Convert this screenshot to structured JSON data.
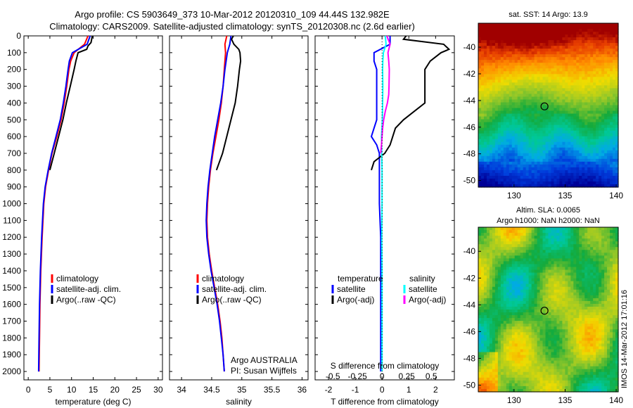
{
  "header": {
    "title_line1": "Argo profile: CS 5903649_373 10-Mar-2012 20120310_109 44.44S 132.982E",
    "title_line2": "Climatology: CARS2009. Satellite-adjusted climatology: synTS_20120308.nc (2.6d earlier)"
  },
  "colors": {
    "climatology": "#ff0000",
    "satellite": "#0000ff",
    "argo": "#000000",
    "satellite_salinity": "#00ffff",
    "argo_salinity_diff": "#ff00ff"
  },
  "chart_data": [
    {
      "type": "line",
      "panel": "temperature",
      "xlabel": "temperature (deg C)",
      "ylabel": "",
      "xlim": [
        -1,
        31
      ],
      "ylim": [
        2050,
        0
      ],
      "xticks": [
        0,
        5,
        10,
        15,
        20,
        25,
        30
      ],
      "yticks": [
        0,
        100,
        200,
        300,
        400,
        500,
        600,
        700,
        800,
        900,
        1000,
        1100,
        1200,
        1300,
        1400,
        1500,
        1600,
        1700,
        1800,
        1900,
        2000
      ],
      "legend": [
        "climatology",
        "satellite-adj. clim.",
        "Argo(..raw -QC)"
      ],
      "legend_placement": "lower-right",
      "series": [
        {
          "name": "climatology",
          "color": "#ff0000",
          "depth": [
            0,
            50,
            100,
            150,
            200,
            300,
            400,
            500,
            600,
            700,
            800,
            900,
            1000,
            1200,
            1400,
            1600,
            1800,
            2000
          ],
          "values": [
            13.8,
            13.0,
            10.6,
            9.8,
            9.4,
            8.9,
            8.3,
            7.6,
            6.6,
            5.5,
            4.7,
            4.0,
            3.6,
            3.2,
            2.9,
            2.7,
            2.6,
            2.5
          ]
        },
        {
          "name": "satellite-adj. clim.",
          "color": "#0000ff",
          "depth": [
            0,
            50,
            100,
            150,
            200,
            300,
            400,
            500,
            600,
            700,
            800,
            900,
            1000,
            1200,
            1400,
            1600,
            1800,
            2000
          ],
          "values": [
            14.3,
            13.6,
            10.2,
            9.5,
            9.2,
            8.7,
            8.1,
            7.4,
            6.4,
            5.4,
            4.6,
            3.9,
            3.5,
            3.1,
            2.8,
            2.6,
            2.5,
            2.4
          ]
        },
        {
          "name": "Argo(..raw -QC)",
          "color": "#000000",
          "depth": [
            0,
            40,
            60,
            80,
            100,
            150,
            200,
            300,
            400,
            500,
            600,
            700,
            800
          ],
          "values": [
            14.8,
            14.5,
            13.8,
            13.5,
            11.5,
            11.0,
            10.6,
            9.7,
            8.8,
            8.0,
            7.0,
            6.0,
            5.0
          ]
        }
      ]
    },
    {
      "type": "line",
      "panel": "salinity",
      "xlabel": "salinity",
      "ylabel": "",
      "xlim": [
        33.8,
        36.1
      ],
      "ylim": [
        2050,
        0
      ],
      "xticks": [
        34,
        34.5,
        35,
        35.5,
        36
      ],
      "legend": [
        "climatology",
        "satellite-adj. clim.",
        "Argo(..raw -QC)"
      ],
      "legend_placement": "lower-right",
      "annotations": [
        "Argo AUSTRALIA",
        "PI: Susan Wijffels"
      ],
      "series": [
        {
          "name": "climatology",
          "color": "#ff0000",
          "depth": [
            0,
            50,
            100,
            150,
            200,
            300,
            400,
            500,
            600,
            700,
            800,
            900,
            1000,
            1100,
            1200,
            1300,
            1400,
            1500,
            1600,
            1700,
            1800,
            1900,
            2000
          ],
          "values": [
            34.75,
            34.72,
            34.73,
            34.72,
            34.71,
            34.69,
            34.66,
            34.62,
            34.57,
            34.52,
            34.48,
            34.45,
            34.43,
            34.42,
            34.43,
            34.46,
            34.5,
            34.55,
            34.6,
            34.64,
            34.67,
            34.69,
            34.71
          ]
        },
        {
          "name": "satellite-adj. clim.",
          "color": "#0000ff",
          "depth": [
            0,
            50,
            100,
            150,
            200,
            300,
            400,
            500,
            600,
            700,
            800,
            900,
            1000,
            1100,
            1200,
            1300,
            1400,
            1500,
            1600,
            1700,
            1800,
            1900,
            2000
          ],
          "values": [
            34.82,
            34.8,
            34.76,
            34.74,
            34.72,
            34.69,
            34.65,
            34.6,
            34.55,
            34.51,
            34.47,
            34.44,
            34.42,
            34.41,
            34.42,
            34.45,
            34.49,
            34.54,
            34.59,
            34.63,
            34.66,
            34.69,
            34.71
          ]
        },
        {
          "name": "Argo(..raw -QC)",
          "color": "#000000",
          "depth": [
            0,
            20,
            50,
            80,
            100,
            150,
            200,
            300,
            400,
            500,
            600,
            700,
            800
          ],
          "values": [
            34.86,
            34.83,
            34.87,
            34.95,
            34.97,
            34.98,
            34.96,
            34.93,
            34.89,
            34.82,
            34.75,
            34.68,
            34.58
          ]
        }
      ]
    },
    {
      "type": "line",
      "panel": "difference",
      "xlabel": "T difference from climatology",
      "xlabel_top": "S difference from climatology",
      "xlim": [
        -2.5,
        2.7
      ],
      "ylim": [
        2050,
        0
      ],
      "xticks": [
        -2,
        -1,
        0,
        1,
        2
      ],
      "xtick_labels": [
        "-2",
        "-1",
        "0",
        "1",
        "2"
      ],
      "sticks": [
        -0.5,
        -0.25,
        0,
        0.25,
        0.5
      ],
      "stick_labels": [
        "-0.5",
        "-0.25",
        "0",
        "0.25",
        "0.5"
      ],
      "legend_groups": [
        {
          "header": "temperature",
          "items": [
            "satellite",
            "Argo(-adj)"
          ]
        },
        {
          "header": "salinity",
          "items": [
            "satellite",
            "Argo(-adj)"
          ]
        }
      ],
      "series": [
        {
          "name": "T satellite",
          "color": "#0000ff",
          "depth": [
            0,
            50,
            100,
            150,
            200,
            300,
            400,
            500,
            550,
            600,
            650,
            700,
            800,
            900,
            1000,
            1200,
            1400,
            1600,
            1800,
            2000
          ],
          "values": [
            0.3,
            0.3,
            -0.3,
            -0.3,
            -0.2,
            -0.2,
            -0.2,
            -0.2,
            -0.3,
            -0.4,
            -0.2,
            -0.1,
            -0.1,
            -0.1,
            -0.1,
            -0.05,
            -0.05,
            -0.05,
            -0.05,
            -0.05
          ]
        },
        {
          "name": "T Argo(-adj)",
          "color": "#000000",
          "depth": [
            0,
            20,
            50,
            80,
            100,
            150,
            200,
            300,
            400,
            450,
            500,
            550,
            600,
            650,
            700,
            750,
            800
          ],
          "values": [
            0.9,
            0.8,
            2.3,
            2.5,
            2.2,
            1.8,
            1.6,
            1.6,
            1.6,
            1.2,
            0.8,
            0.5,
            0.4,
            0.3,
            0.1,
            -0.3,
            -0.4
          ]
        },
        {
          "name": "S satellite",
          "color": "#00ffff",
          "depth": [
            0,
            50,
            100,
            150,
            200,
            300,
            400,
            500,
            600,
            700,
            800,
            900,
            1000,
            1200,
            1400,
            1600,
            1800,
            2000
          ],
          "values": [
            0.12,
            0.15,
            0.05,
            0.03,
            0.02,
            0.03,
            0.02,
            0.01,
            -0.02,
            -0.01,
            0.0,
            0.0,
            0.0,
            -0.01,
            0.0,
            0.0,
            0.0,
            0.0
          ]
        },
        {
          "name": "S Argo(-adj)",
          "color": "#ff00ff",
          "depth": [
            0,
            50,
            100,
            150,
            200,
            300,
            350,
            400,
            450,
            500,
            550,
            600,
            650,
            700
          ],
          "values": [
            0.18,
            0.3,
            0.22,
            0.25,
            0.27,
            0.26,
            0.25,
            0.2,
            0.12,
            0.06,
            0.02,
            0.0,
            -0.02,
            -0.05
          ]
        }
      ]
    },
    {
      "type": "heatmap",
      "panel": "sst-map",
      "title": "sat. SST: 14 Argo: 13.9",
      "xlim": [
        126.5,
        140.2
      ],
      "ylim": [
        -50.5,
        -38.2
      ],
      "xticks": [
        130,
        135,
        140
      ],
      "yticks": [
        -40,
        -42,
        -44,
        -46,
        -48,
        -50
      ],
      "marker": {
        "lon": 132.982,
        "lat": -44.44
      }
    },
    {
      "type": "heatmap",
      "panel": "sla-map",
      "title": "Altim. SLA: 0.0065",
      "subtitle": "Argo h1000: NaN h2000: NaN",
      "xlim": [
        126.5,
        140.2
      ],
      "ylim": [
        -50.5,
        -38.2
      ],
      "xticks": [
        130,
        135,
        140
      ],
      "yticks": [
        -40,
        -42,
        -44,
        -46,
        -48,
        -50
      ],
      "marker": {
        "lon": 132.982,
        "lat": -44.44
      }
    }
  ],
  "watermark": "IMOS 14-Mar-2012 17:01:16"
}
